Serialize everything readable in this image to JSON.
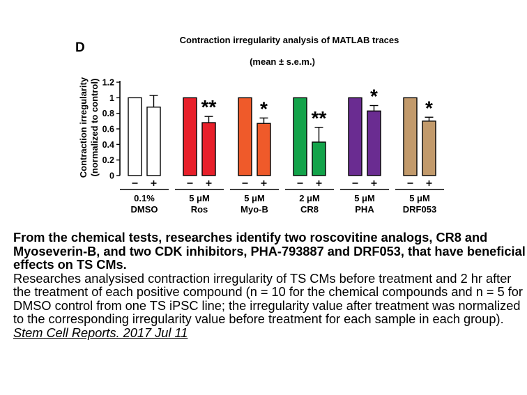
{
  "chart_data": {
    "type": "bar",
    "panel_label": "D",
    "title": "Contraction irregularity analysis of MATLAB traces",
    "subtitle": "(mean ± s.e.m.)",
    "ylabel_line1": "Contraction irregularity",
    "ylabel_line2": "(normalized to control)",
    "ylim": [
      0,
      1.2
    ],
    "yticks": [
      "0",
      "0.2",
      "0.4",
      "0.6",
      "0.8",
      "1",
      "1.2"
    ],
    "condition_labels": [
      "−",
      "+"
    ],
    "groups": [
      {
        "dose": "0.1%",
        "name": "DMSO",
        "color": "#ffffff",
        "values": [
          1.0,
          0.88
        ],
        "errors": [
          0,
          0.15
        ],
        "sig": ""
      },
      {
        "dose": "5 μM",
        "name": "Ros",
        "color": "#e8202a",
        "values": [
          1.0,
          0.68
        ],
        "errors": [
          0,
          0.08
        ],
        "sig": "**"
      },
      {
        "dose": "5 μM",
        "name": "Myo-B",
        "color": "#ef5a2a",
        "values": [
          1.0,
          0.67
        ],
        "errors": [
          0,
          0.07
        ],
        "sig": "*"
      },
      {
        "dose": "2 μM",
        "name": "CR8",
        "color": "#13a34a",
        "values": [
          1.0,
          0.43
        ],
        "errors": [
          0,
          0.19
        ],
        "sig": "**"
      },
      {
        "dose": "5 μM",
        "name": "PHA",
        "color": "#6a2c91",
        "values": [
          1.0,
          0.83
        ],
        "errors": [
          0,
          0.07
        ],
        "sig": "*"
      },
      {
        "dose": "5 μM",
        "name": "DRF053",
        "color": "#c29a6b",
        "values": [
          1.0,
          0.7
        ],
        "errors": [
          0,
          0.05
        ],
        "sig": "*"
      }
    ]
  },
  "caption": {
    "bold": "From the chemical tests, researches identify two roscovitine analogs, CR8 and Myoseverin-B, and two CDK inhibitors, PHA-793887 and DRF053, that have beneficial effects on TS CMs.",
    "body": "Researches analysised contraction irregularity of TS CMs before treatment and 2 hr after the treatment of each positive compound (n = 10 for the chemical compounds and n = 5 for DMSO control from one TS iPSC line; the irregularity value after treatment was normalized to the corresponding irregularity value before treatment for each sample in each group).",
    "link": "Stem Cell Reports. 2017 Jul 11"
  }
}
